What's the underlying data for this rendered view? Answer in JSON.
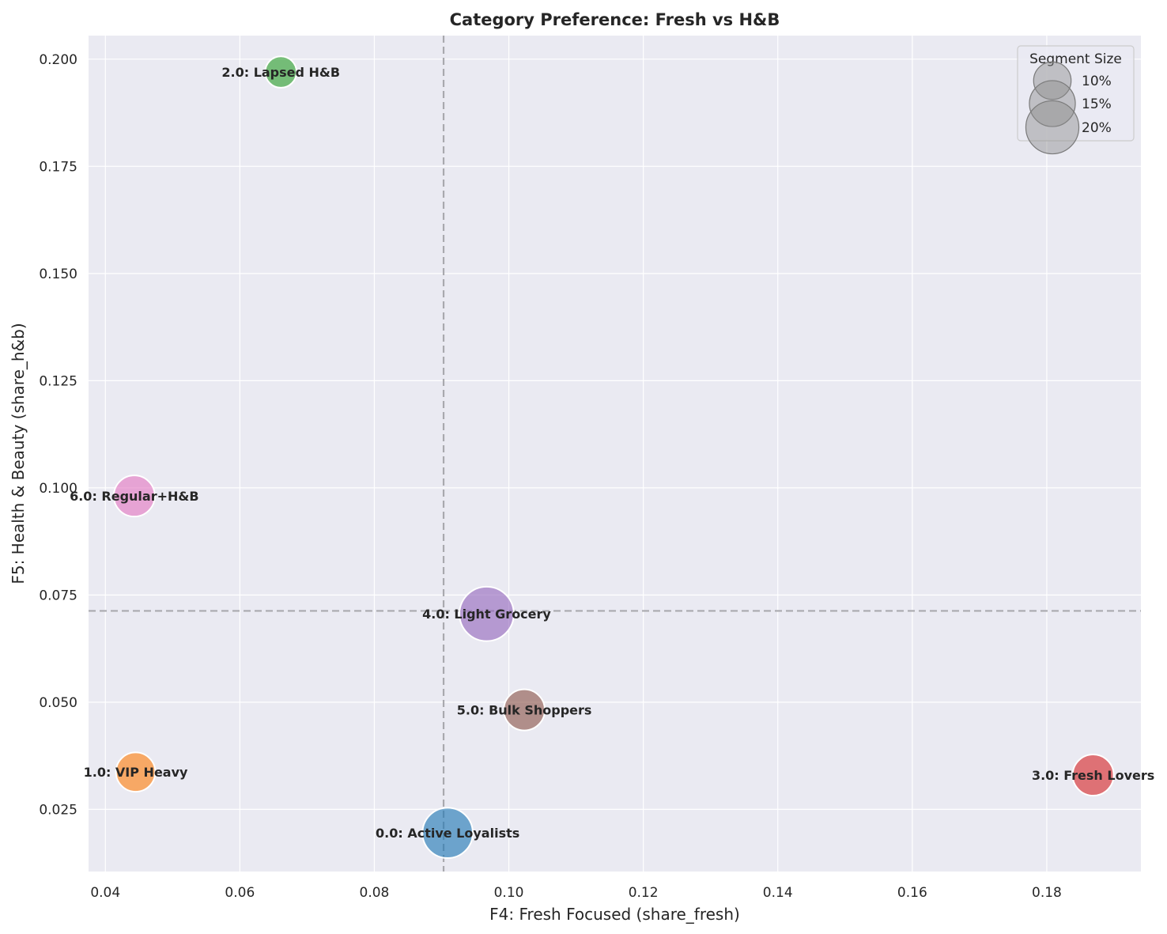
{
  "chart_data": {
    "type": "scatter",
    "title": "Category Preference: Fresh vs H&B",
    "xlabel": "F4: Fresh Focused (share_fresh)",
    "ylabel": "F5: Health & Beauty (share_h&b)",
    "xlim": [
      0.0375,
      0.194
    ],
    "ylim": [
      0.0105,
      0.2055
    ],
    "xticks": [
      0.04,
      0.06,
      0.08,
      0.1,
      0.12,
      0.14,
      0.16,
      0.18
    ],
    "xtick_labels": [
      "0.04",
      "0.06",
      "0.08",
      "0.10",
      "0.12",
      "0.14",
      "0.16",
      "0.18"
    ],
    "yticks": [
      0.025,
      0.05,
      0.075,
      0.1,
      0.125,
      0.15,
      0.175,
      0.2
    ],
    "ytick_labels": [
      "0.025",
      "0.050",
      "0.075",
      "0.100",
      "0.125",
      "0.150",
      "0.175",
      "0.200"
    ],
    "grid": true,
    "reference_lines": {
      "x_mean": 0.0903,
      "y_mean": 0.0713
    },
    "points": [
      {
        "label": "0.0: Active Loyalists",
        "x": 0.0909,
        "y": 0.0195,
        "size_pct": 18,
        "color": "#1f77b4"
      },
      {
        "label": "1.0: VIP Heavy",
        "x": 0.0445,
        "y": 0.0337,
        "size_pct": 11,
        "color": "#ff7f0e"
      },
      {
        "label": "2.0: Lapsed H&B",
        "x": 0.0661,
        "y": 0.197,
        "size_pct": 7,
        "color": "#2ca02c"
      },
      {
        "label": "3.0: Fresh Lovers",
        "x": 0.1869,
        "y": 0.033,
        "size_pct": 12,
        "color": "#d62728"
      },
      {
        "label": "4.0: Light Grocery",
        "x": 0.0967,
        "y": 0.0706,
        "size_pct": 21,
        "color": "#9467bd"
      },
      {
        "label": "5.0: Bulk Shoppers",
        "x": 0.1023,
        "y": 0.0482,
        "size_pct": 12,
        "color": "#8c564b"
      },
      {
        "label": "6.0: Regular+H&B",
        "x": 0.0443,
        "y": 0.0981,
        "size_pct": 12,
        "color": "#e377c2"
      }
    ],
    "legend": {
      "title": "Segment Size",
      "placement": "top-right",
      "entries": [
        {
          "label": "10%",
          "size_pct": 10
        },
        {
          "label": "15%",
          "size_pct": 15
        },
        {
          "label": "20%",
          "size_pct": 20
        }
      ]
    }
  }
}
